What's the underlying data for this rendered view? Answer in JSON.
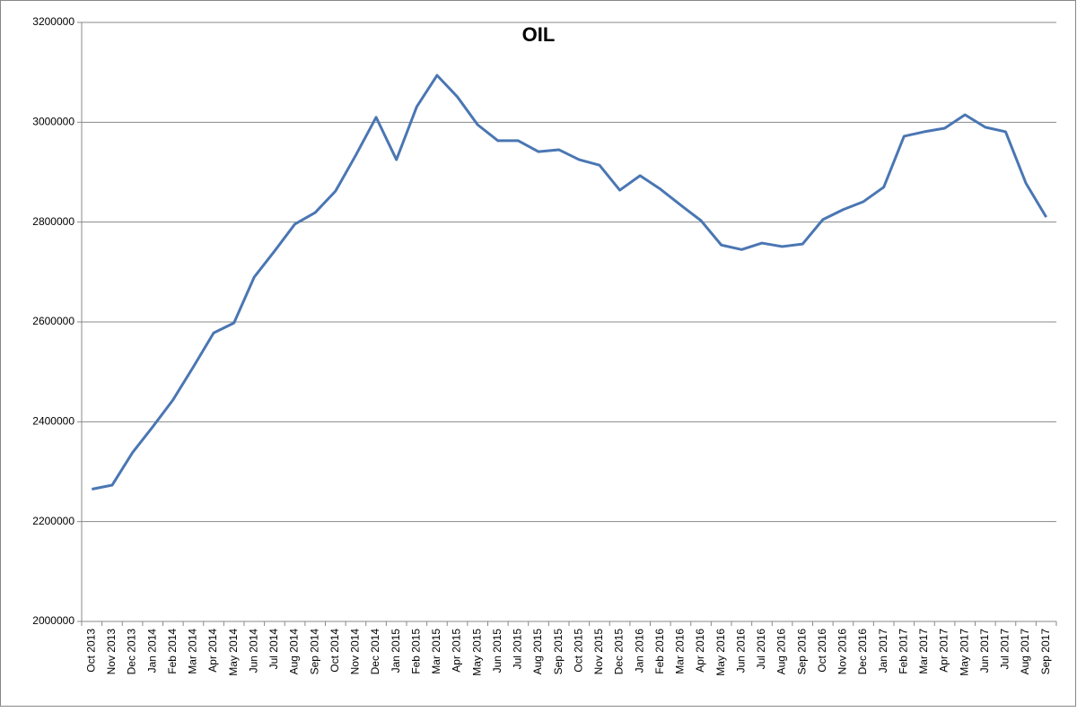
{
  "chart_data": {
    "type": "line",
    "title": "OIL",
    "categories": [
      "Oct 2013",
      "Nov 2013",
      "Dec 2013",
      "Jan 2014",
      "Feb 2014",
      "Mar 2014",
      "Apr 2014",
      "May 2014",
      "Jun 2014",
      "Jul 2014",
      "Aug 2014",
      "Sep 2014",
      "Oct 2014",
      "Nov 2014",
      "Dec 2014",
      "Jan 2015",
      "Feb 2015",
      "Mar 2015",
      "Apr 2015",
      "May 2015",
      "Jun 2015",
      "Jul 2015",
      "Aug 2015",
      "Sep 2015",
      "Oct 2015",
      "Nov 2015",
      "Dec 2015",
      "Jan 2016",
      "Feb 2016",
      "Mar 2016",
      "Apr 2016",
      "May 2016",
      "Jun 2016",
      "Jul 2016",
      "Aug 2016",
      "Sep 2016",
      "Oct 2016",
      "Nov 2016",
      "Dec 2016",
      "Jan 2017",
      "Feb 2017",
      "Mar 2017",
      "Apr 2017",
      "May 2017",
      "Jun 2017",
      "Jul 2017",
      "Aug 2017",
      "Sep 2017"
    ],
    "values": [
      2265000,
      2273000,
      2338000,
      2390000,
      2444000,
      2510000,
      2578000,
      2598000,
      2690000,
      2742000,
      2796000,
      2819000,
      2862000,
      2934000,
      3010000,
      2925000,
      3031000,
      3094000,
      3051000,
      2995000,
      2963000,
      2963000,
      2941000,
      2945000,
      2925000,
      2914000,
      2864000,
      2893000,
      2866000,
      2834000,
      2803000,
      2754000,
      2745000,
      2758000,
      2751000,
      2756000,
      2805000,
      2825000,
      2841000,
      2870000,
      2972000,
      2981000,
      2988000,
      3015000,
      2990000,
      2981000,
      2878000,
      2810000
    ],
    "color": "#4a76b3",
    "ylim": [
      2000000,
      3200000
    ],
    "yticks": [
      2000000,
      2200000,
      2400000,
      2600000,
      2800000,
      3000000,
      3200000
    ],
    "grid": true
  }
}
